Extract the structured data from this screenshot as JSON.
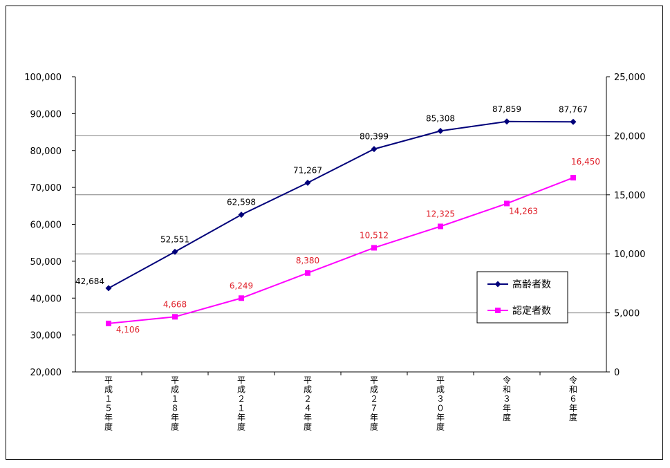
{
  "chart_data": {
    "type": "line",
    "title": "",
    "categories": [
      "平成１５年度",
      "平成１８年度",
      "平成２１年度",
      "平成２４年度",
      "平成２７年度",
      "平成３０年度",
      "令和３年度",
      "令和６年度"
    ],
    "series": [
      {
        "name": "高齢者数",
        "axis": "left",
        "color": "#00007a",
        "marker": "diamond",
        "values": [
          42684,
          52551,
          62598,
          71267,
          80399,
          85308,
          87859,
          87767
        ],
        "labels": [
          "42,684",
          "52,551",
          "62,598",
          "71,267",
          "80,399",
          "85,308",
          "87,859",
          "87,767"
        ]
      },
      {
        "name": "認定者数",
        "axis": "right",
        "color": "#ff00ff",
        "label_color": "#e0202a",
        "marker": "square",
        "values": [
          4106,
          4668,
          6249,
          8380,
          10512,
          12325,
          14263,
          16450
        ],
        "labels": [
          "4,106",
          "4,668",
          "6,249",
          "8,380",
          "10,512",
          "12,325",
          "14,263",
          "16,450"
        ]
      }
    ],
    "y_left": {
      "range": [
        20000,
        100000
      ],
      "ticks": [
        "20,000",
        "30,000",
        "40,000",
        "50,000",
        "60,000",
        "70,000",
        "80,000",
        "90,000",
        "100,000"
      ]
    },
    "y_right": {
      "range": [
        0,
        25000
      ],
      "ticks": [
        "0",
        "5,000",
        "10,000",
        "15,000",
        "20,000",
        "25,000"
      ],
      "gridlines": true
    },
    "legend": {
      "position": "right",
      "entries": [
        "高齢者数",
        "認定者数"
      ]
    }
  }
}
